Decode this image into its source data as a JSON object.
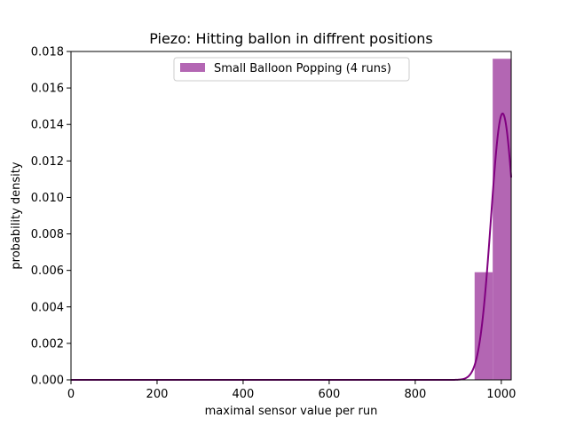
{
  "chart_data": {
    "type": "histogram",
    "title": "Piezo: Hitting ballon in diffrent positions",
    "xlabel": "maximal sensor value per run",
    "ylabel": "probability density",
    "xlim": [
      0,
      1023
    ],
    "ylim": [
      0,
      0.018
    ],
    "x_ticks": [
      0,
      200,
      400,
      600,
      800,
      1000
    ],
    "y_ticks": [
      "0.000",
      "0.002",
      "0.004",
      "0.006",
      "0.008",
      "0.010",
      "0.012",
      "0.014",
      "0.016",
      "0.018"
    ],
    "grid": false,
    "legend_position": "upper center",
    "bins": [
      {
        "x0": 938,
        "x1": 980,
        "density": 0.0059
      },
      {
        "x0": 980,
        "x1": 1023,
        "density": 0.0176
      }
    ],
    "series": [
      {
        "name": "Small Balloon Popping (4 runs)",
        "kind": "bars",
        "color": "#b366b3"
      },
      {
        "kind": "density-curve",
        "color": "#800080",
        "mean": 1003,
        "std": 27,
        "peak": 0.0146
      }
    ]
  }
}
